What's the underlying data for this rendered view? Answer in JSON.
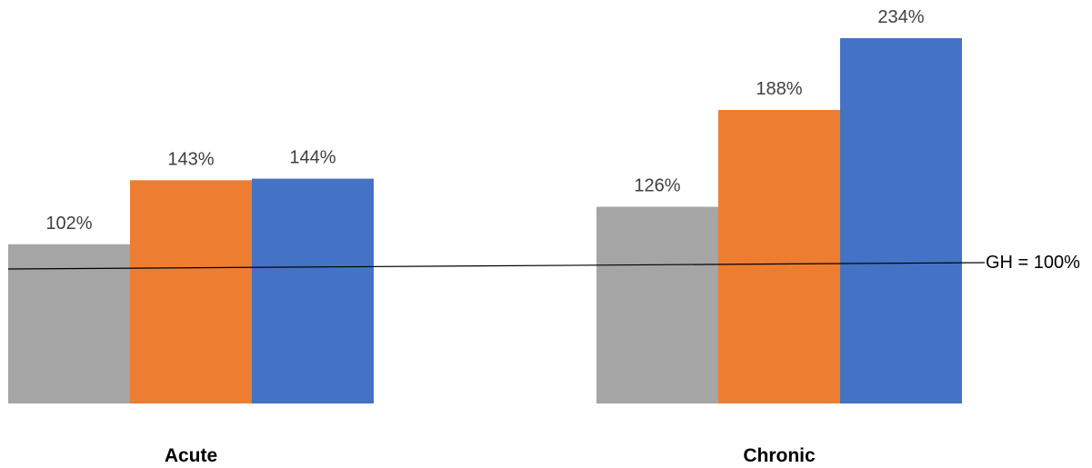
{
  "chart_data": {
    "type": "bar",
    "categories": [
      "Acute",
      "Chronic"
    ],
    "series": [
      {
        "values": [
          102,
          126
        ],
        "color": "#a5a5a5"
      },
      {
        "values": [
          143,
          188
        ],
        "color": "#ed7d31"
      },
      {
        "values": [
          144,
          234
        ],
        "color": "#4472c4"
      }
    ],
    "value_labels": [
      [
        "102%",
        "126%"
      ],
      [
        "143%",
        "188%"
      ],
      [
        "144%",
        "234%"
      ]
    ],
    "reference_line": {
      "value": 100,
      "label": "GH = 100%"
    },
    "ylim": [
      0,
      234
    ],
    "grid": false,
    "legend": "none",
    "title": "",
    "xlabel": "",
    "ylabel": ""
  }
}
